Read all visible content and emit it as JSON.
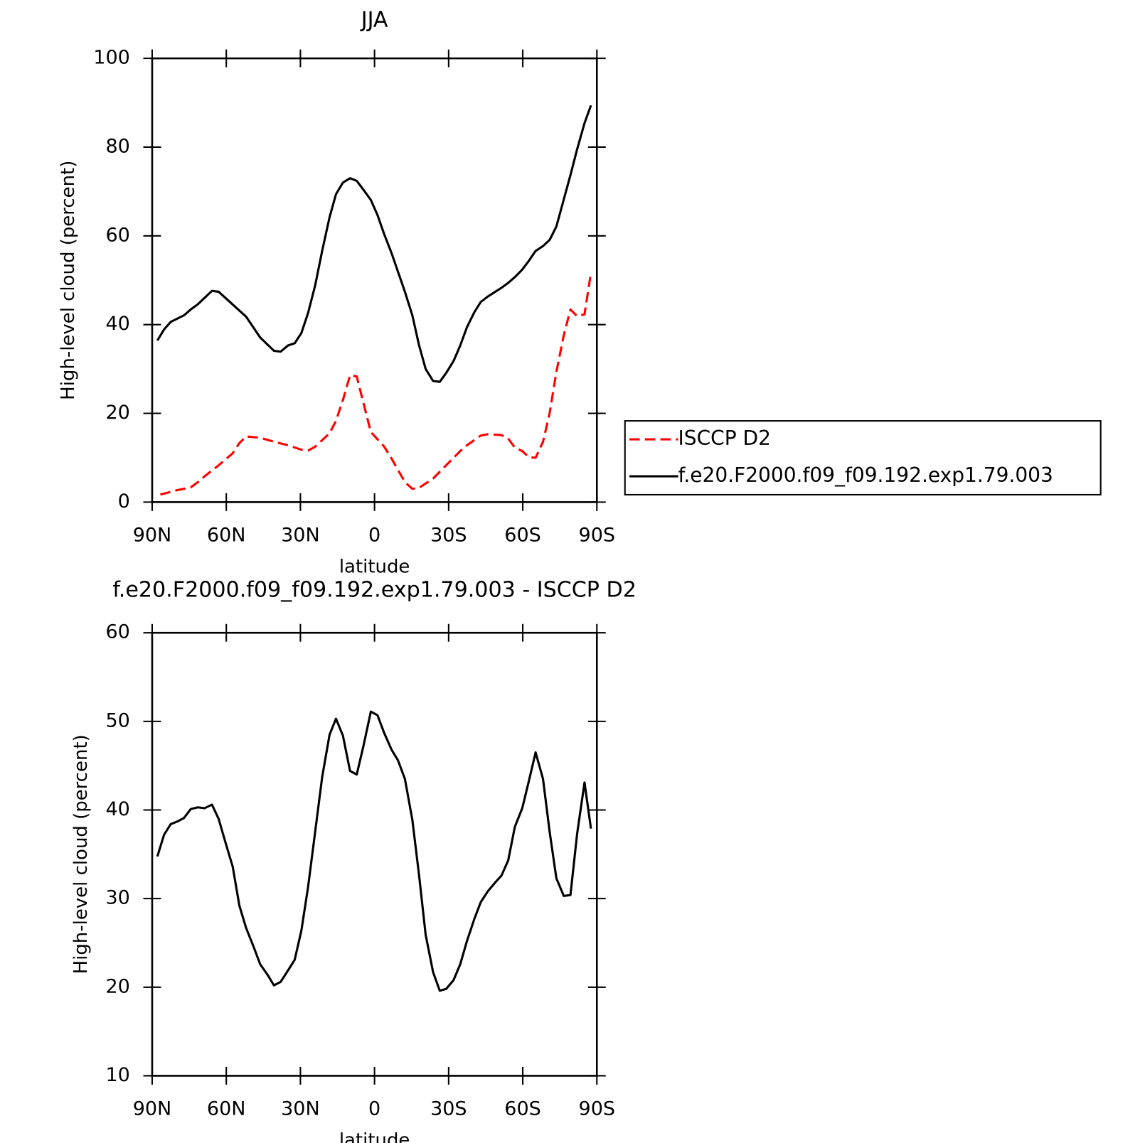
{
  "chart_data": [
    {
      "type": "line",
      "title": "JJA",
      "x_label": "latitude",
      "y_label": "High-level cloud (percent)",
      "xlim": [
        90,
        -90
      ],
      "xticks": [
        {
          "value": 90,
          "label": "90N"
        },
        {
          "value": 60,
          "label": "60N"
        },
        {
          "value": 30,
          "label": "30N"
        },
        0,
        {
          "value": -30,
          "label": "30S"
        },
        {
          "value": -60,
          "label": "60S"
        },
        {
          "value": -90,
          "label": "90S"
        }
      ],
      "ylim": [
        0,
        100
      ],
      "yticks": [
        0,
        20,
        40,
        60,
        80,
        100
      ],
      "legend": "right",
      "series": [
        {
          "name": "ISCCP D2",
          "color": "#ff0000",
          "linestyle": "dashed",
          "x": [
            86.7,
            82.5,
            79.8,
            74.4,
            71.5,
            68.8,
            63.1,
            57.4,
            54.7,
            52.0,
            46.3,
            40.7,
            35.0,
            29.6,
            26.9,
            24.0,
            18.2,
            15.6,
            12.8,
            9.9,
            7.2,
            1.5,
            -3.9,
            -6.9,
            -12.3,
            -15.3,
            -18.0,
            -23.7,
            -29.0,
            -34.7,
            -37.4,
            -43.0,
            -45.8,
            -51.4,
            -54.1,
            -56.8,
            -59.8,
            -62.5,
            -65.2,
            -68.2,
            -70.9,
            -73.6,
            -76.6,
            -79.3,
            -82.0,
            -85.0,
            -87.6
          ],
          "values": [
            1.7,
            2.3,
            2.7,
            3.3,
            4.5,
            5.8,
            8.3,
            11.0,
            13.3,
            14.8,
            14.5,
            13.6,
            12.8,
            11.8,
            11.6,
            12.5,
            15.5,
            18.3,
            23.0,
            28.6,
            28.3,
            15.8,
            12.5,
            9.8,
            4.5,
            3.0,
            3.2,
            5.3,
            8.3,
            11.5,
            12.8,
            15.0,
            15.3,
            15.1,
            14.3,
            12.3,
            11.5,
            10.1,
            10.0,
            13.6,
            20.1,
            29.3,
            37.6,
            43.4,
            41.9,
            42.3,
            51.7
          ]
        },
        {
          "name": "f.e20.F2000.f09_f09.192.exp1.79.003",
          "color": "#000000",
          "linestyle": "solid",
          "x": [
            87.9,
            85.2,
            82.5,
            77.1,
            74.4,
            71.5,
            65.8,
            63.1,
            52.0,
            46.3,
            40.7,
            38.0,
            35.0,
            32.3,
            29.6,
            26.9,
            24.0,
            21.2,
            18.2,
            15.6,
            12.8,
            9.9,
            7.2,
            4.5,
            1.5,
            -1.2,
            -3.9,
            -6.9,
            -12.3,
            -15.3,
            -18.0,
            -20.7,
            -23.7,
            -26.4,
            -29.0,
            -32.0,
            -34.7,
            -37.4,
            -40.4,
            -43.0,
            -45.8,
            -51.4,
            -54.1,
            -56.8,
            -59.8,
            -62.5,
            -65.2,
            -68.2,
            -70.9,
            -73.6,
            -76.6,
            -79.3,
            -82.0,
            -85.0,
            -87.6
          ],
          "values": [
            36.4,
            38.9,
            40.6,
            42.1,
            43.4,
            44.6,
            47.6,
            47.4,
            41.8,
            37.1,
            34.1,
            33.9,
            35.3,
            35.8,
            38.1,
            42.6,
            48.9,
            56.6,
            64.2,
            69.4,
            72.0,
            73.0,
            72.4,
            70.4,
            68.1,
            64.7,
            60.4,
            56.1,
            47.4,
            42.1,
            35.4,
            30.0,
            27.3,
            27.1,
            29.1,
            31.8,
            35.3,
            39.4,
            42.8,
            45.1,
            46.3,
            48.3,
            49.4,
            50.7,
            52.4,
            54.4,
            56.6,
            57.7,
            59.1,
            62.1,
            68.2,
            73.7,
            79.5,
            85.4,
            89.4
          ]
        }
      ]
    },
    {
      "type": "line",
      "title": "f.e20.F2000.f09_f09.192.exp1.79.003 - ISCCP D2",
      "x_label": "latitude",
      "y_label": "High-level cloud (percent)",
      "xlim": [
        90,
        -90
      ],
      "xticks": [
        {
          "value": 90,
          "label": "90N"
        },
        {
          "value": 60,
          "label": "60N"
        },
        {
          "value": 30,
          "label": "30N"
        },
        0,
        {
          "value": -30,
          "label": "30S"
        },
        {
          "value": -60,
          "label": "60S"
        },
        {
          "value": -90,
          "label": "90S"
        }
      ],
      "ylim": [
        10,
        60
      ],
      "yticks": [
        10,
        20,
        30,
        40,
        50,
        60
      ],
      "series": [
        {
          "color": "#000000",
          "linestyle": "solid",
          "x": [
            87.9,
            85.2,
            82.5,
            79.8,
            77.1,
            74.4,
            71.5,
            68.8,
            65.8,
            63.1,
            60.4,
            57.4,
            54.7,
            52.0,
            49.0,
            46.3,
            43.3,
            40.7,
            38.0,
            35.0,
            32.3,
            29.6,
            26.9,
            24.0,
            21.2,
            18.2,
            15.6,
            12.8,
            9.9,
            7.2,
            4.5,
            1.5,
            -1.2,
            -3.9,
            -6.9,
            -9.5,
            -12.3,
            -15.3,
            -18.0,
            -20.7,
            -23.7,
            -26.4,
            -29.0,
            -32.0,
            -34.7,
            -37.4,
            -40.4,
            -43.0,
            -45.8,
            -48.8,
            -51.4,
            -54.1,
            -56.8,
            -59.8,
            -62.5,
            -65.2,
            -68.2,
            -70.9,
            -73.6,
            -76.6,
            -79.3,
            -82.0,
            -85.0,
            -87.6
          ],
          "values": [
            34.75,
            37.2,
            38.4,
            38.7,
            39.1,
            40.1,
            40.3,
            40.2,
            40.6,
            39.0,
            36.4,
            33.6,
            29.2,
            26.7,
            24.6,
            22.6,
            21.4,
            20.2,
            20.6,
            21.9,
            23.1,
            26.4,
            31.3,
            37.6,
            43.7,
            48.5,
            50.3,
            48.4,
            44.4,
            44.0,
            47.2,
            51.1,
            50.7,
            48.7,
            46.8,
            45.6,
            43.5,
            38.9,
            32.7,
            25.9,
            21.7,
            19.6,
            19.8,
            20.8,
            22.6,
            25.2,
            27.7,
            29.6,
            30.8,
            31.8,
            32.6,
            34.3,
            38.1,
            40.2,
            43.3,
            46.5,
            43.5,
            37.5,
            32.3,
            30.3,
            30.4,
            37.3,
            43.1,
            37.9
          ]
        }
      ]
    }
  ]
}
